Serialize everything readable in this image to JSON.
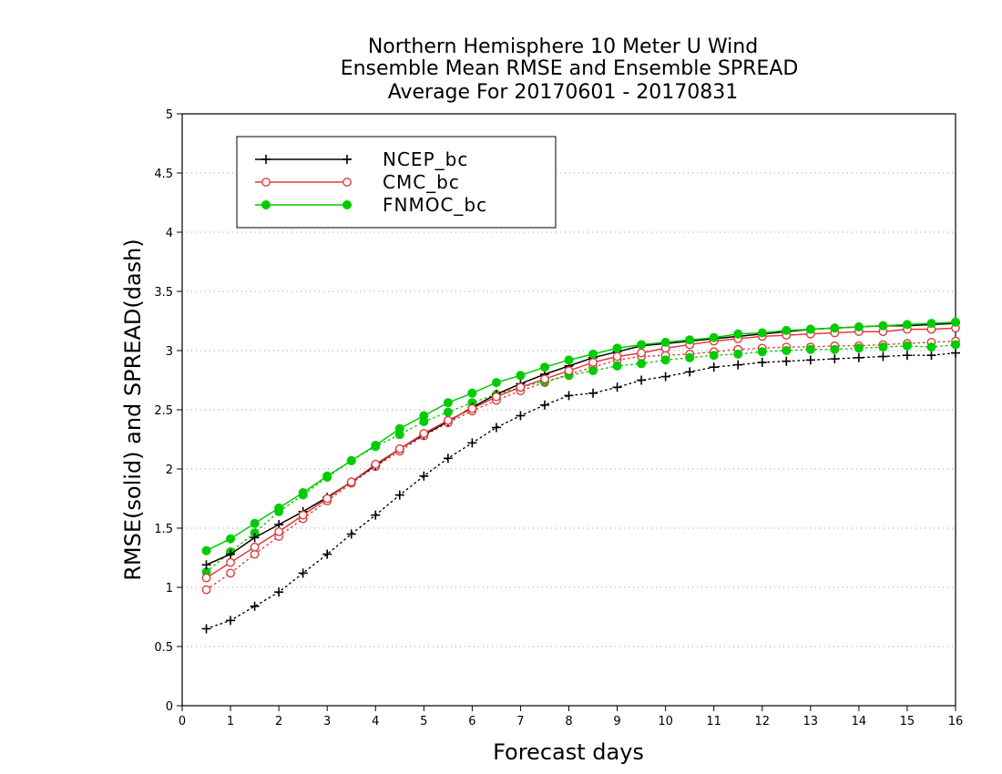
{
  "chart_data": {
    "type": "line",
    "title": [
      "Northern Hemisphere 10 Meter U Wind",
      "Ensemble Mean RMSE and Ensemble SPREAD",
      "Average For 20170601 - 20170831"
    ],
    "xlabel": "Forecast days",
    "ylabel": "RMSE(solid) and SPREAD(dash)",
    "xlim": [
      0,
      16
    ],
    "ylim": [
      0,
      5
    ],
    "x_ticks": [
      "0",
      "1",
      "2",
      "3",
      "4",
      "5",
      "6",
      "7",
      "8",
      "9",
      "10",
      "11",
      "12",
      "13",
      "14",
      "15",
      "16"
    ],
    "y_ticks": [
      "0",
      "0.5",
      "1",
      "1.5",
      "2",
      "2.5",
      "3",
      "3.5",
      "4",
      "4.5",
      "5"
    ],
    "y_tick_values": [
      0,
      0.5,
      1,
      1.5,
      2,
      2.5,
      3,
      3.5,
      4,
      4.5,
      5
    ],
    "grid": "horizontal dotted",
    "legend_position": "top-left",
    "x": [
      0.5,
      1,
      1.5,
      2,
      2.5,
      3,
      3.5,
      4,
      4.5,
      5,
      5.5,
      6,
      6.5,
      7,
      7.5,
      8,
      8.5,
      9,
      9.5,
      10,
      10.5,
      11,
      11.5,
      12,
      12.5,
      13,
      13.5,
      14,
      14.5,
      15,
      15.5,
      16
    ],
    "series": [
      {
        "name": "NCEP_bc",
        "color": "#000000",
        "marker": "plus",
        "rmse": [
          1.19,
          1.28,
          1.42,
          1.53,
          1.64,
          1.76,
          1.89,
          2.03,
          2.17,
          2.29,
          2.4,
          2.52,
          2.63,
          2.72,
          2.8,
          2.87,
          2.94,
          2.99,
          3.04,
          3.06,
          3.08,
          3.1,
          3.12,
          3.14,
          3.16,
          3.18,
          3.19,
          3.2,
          3.21,
          3.21,
          3.22,
          3.23
        ],
        "spread": [
          0.65,
          0.72,
          0.84,
          0.96,
          1.12,
          1.28,
          1.45,
          1.61,
          1.78,
          1.94,
          2.09,
          2.22,
          2.35,
          2.45,
          2.54,
          2.62,
          2.64,
          2.69,
          2.75,
          2.78,
          2.82,
          2.86,
          2.88,
          2.9,
          2.91,
          2.92,
          2.93,
          2.94,
          2.95,
          2.96,
          2.96,
          2.98
        ]
      },
      {
        "name": "CMC_bc",
        "color": "#e03b3b",
        "marker": "open-circle",
        "rmse": [
          1.08,
          1.21,
          1.34,
          1.47,
          1.61,
          1.75,
          1.89,
          2.04,
          2.17,
          2.3,
          2.41,
          2.51,
          2.61,
          2.69,
          2.76,
          2.83,
          2.9,
          2.95,
          2.98,
          3.02,
          3.05,
          3.08,
          3.1,
          3.12,
          3.13,
          3.14,
          3.15,
          3.16,
          3.16,
          3.18,
          3.18,
          3.19
        ],
        "spread": [
          0.98,
          1.12,
          1.28,
          1.43,
          1.58,
          1.73,
          1.88,
          2.02,
          2.15,
          2.28,
          2.39,
          2.49,
          2.58,
          2.66,
          2.73,
          2.8,
          2.86,
          2.92,
          2.95,
          2.96,
          2.97,
          2.99,
          3.01,
          3.02,
          3.03,
          3.03,
          3.04,
          3.04,
          3.05,
          3.06,
          3.07,
          3.08
        ]
      },
      {
        "name": "FNMOC_bc",
        "color": "#00cc00",
        "marker": "filled-circle",
        "rmse": [
          1.31,
          1.41,
          1.54,
          1.67,
          1.8,
          1.94,
          2.07,
          2.2,
          2.34,
          2.45,
          2.56,
          2.64,
          2.73,
          2.79,
          2.86,
          2.92,
          2.97,
          3.02,
          3.05,
          3.07,
          3.09,
          3.11,
          3.14,
          3.15,
          3.17,
          3.18,
          3.19,
          3.2,
          3.21,
          3.22,
          3.23,
          3.24
        ],
        "spread": [
          1.13,
          1.3,
          1.46,
          1.64,
          1.78,
          1.93,
          2.07,
          2.19,
          2.29,
          2.4,
          2.48,
          2.56,
          2.63,
          2.69,
          2.74,
          2.79,
          2.83,
          2.87,
          2.89,
          2.92,
          2.94,
          2.96,
          2.97,
          2.99,
          3.0,
          3.01,
          3.01,
          3.02,
          3.03,
          3.04,
          3.03,
          3.05
        ]
      }
    ]
  }
}
